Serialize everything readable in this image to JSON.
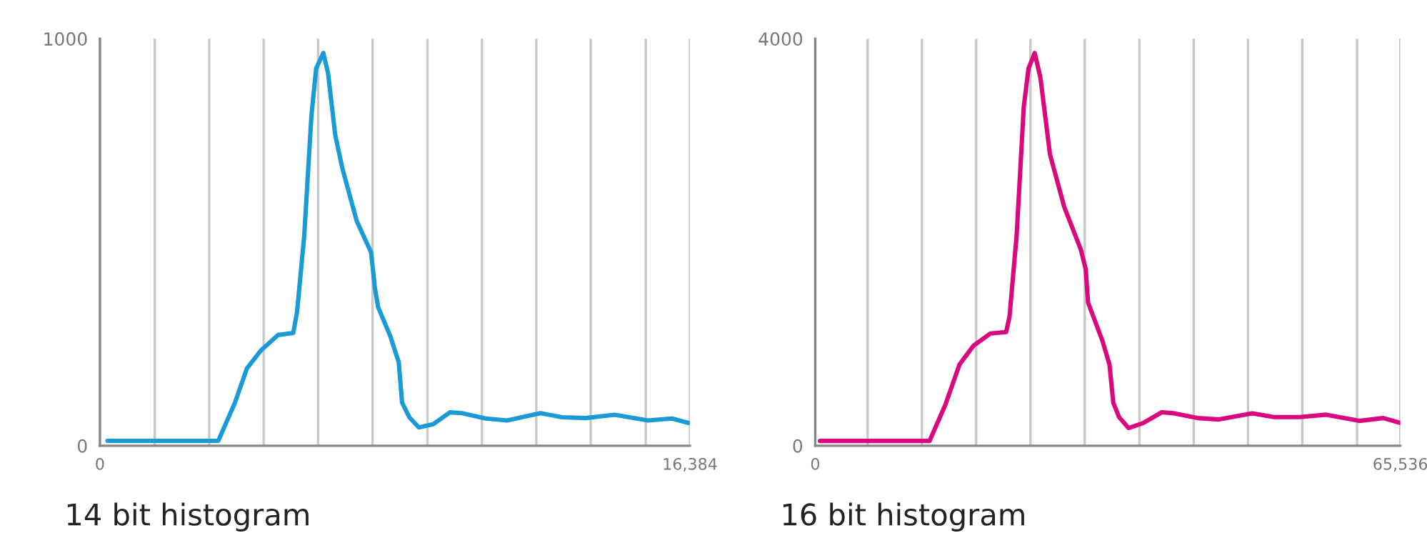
{
  "chart_data": [
    {
      "type": "line",
      "xlabel": "14 bit histogram",
      "grid": "x",
      "legend": false,
      "marker": "none",
      "line_style": "solid",
      "xlim": [
        0,
        16384
      ],
      "ylim": [
        0,
        1000
      ],
      "xticks": [
        0,
        {
          "value": 1524,
          "label": null
        },
        {
          "value": 3036,
          "label": null
        },
        {
          "value": 4547,
          "label": null
        },
        {
          "value": 6060,
          "label": null
        },
        {
          "value": 7571,
          "label": null
        },
        {
          "value": 9096,
          "label": null
        },
        {
          "value": 10607,
          "label": null
        },
        {
          "value": 12118,
          "label": null
        },
        {
          "value": 13629,
          "label": null
        },
        {
          "value": 15157,
          "label": null
        },
        {
          "value": 16384,
          "label": "16,384"
        }
      ],
      "yticks": [
        0,
        1000
      ],
      "series": [
        {
          "color": "#1a9ad6",
          "x": [
            212,
            3287,
            3751,
            4083,
            4481,
            4944,
            5369,
            5475,
            5674,
            5873,
            6005,
            6204,
            6336,
            6535,
            6734,
            7132,
            7530,
            7636,
            7728,
            8060,
            8298,
            8391,
            8590,
            8855,
            9253,
            9717,
            10048,
            10711,
            11307,
            12235,
            12831,
            13495,
            14290,
            15218,
            15881,
            16345
          ],
          "values": [
            12,
            12,
            106,
            190,
            235,
            272,
            277,
            329,
            516,
            810,
            927,
            965,
            915,
            763,
            681,
            552,
            475,
            387,
            340,
            270,
            205,
            106,
            70,
            45,
            53,
            82,
            80,
            67,
            62,
            80,
            70,
            68,
            76,
            62,
            67,
            56
          ]
        }
      ]
    },
    {
      "type": "line",
      "xlabel": "16 bit histogram",
      "grid": "x",
      "legend": false,
      "marker": "none",
      "line_style": "solid",
      "xlim": [
        0,
        65536
      ],
      "ylim": [
        0,
        4000
      ],
      "xticks": [
        0,
        {
          "value": 5866,
          "label": null
        },
        {
          "value": 11946,
          "label": null
        },
        {
          "value": 18026,
          "label": null
        },
        {
          "value": 24106,
          "label": null
        },
        {
          "value": 30186,
          "label": null
        },
        {
          "value": 36318,
          "label": null
        },
        {
          "value": 42398,
          "label": null
        },
        {
          "value": 48478,
          "label": null
        },
        {
          "value": 54558,
          "label": null
        },
        {
          "value": 60691,
          "label": null
        },
        {
          "value": 65536,
          "label": "65,536"
        }
      ],
      "yticks": [
        0,
        4000
      ],
      "series": [
        {
          "color": "#d9087f",
          "x": [
            533,
            12800,
            14559,
            16159,
            17759,
            19626,
            21386,
            21759,
            22559,
            23359,
            23892,
            24586,
            25225,
            26292,
            27892,
            29759,
            30292,
            30559,
            32159,
            32959,
            33386,
            34026,
            35092,
            36692,
            38825,
            40158,
            42825,
            45225,
            48958,
            51358,
            54291,
            57224,
            60957,
            63623,
            65490
          ],
          "values": [
            47,
            47,
            399,
            798,
            986,
            1103,
            1117,
            1268,
            2066,
            3333,
            3709,
            3859,
            3615,
            2864,
            2347,
            1925,
            1737,
            1408,
            1033,
            798,
            423,
            282,
            174,
            221,
            329,
            319,
            272,
            258,
            319,
            282,
            282,
            305,
            244,
            272,
            225
          ]
        }
      ]
    }
  ]
}
